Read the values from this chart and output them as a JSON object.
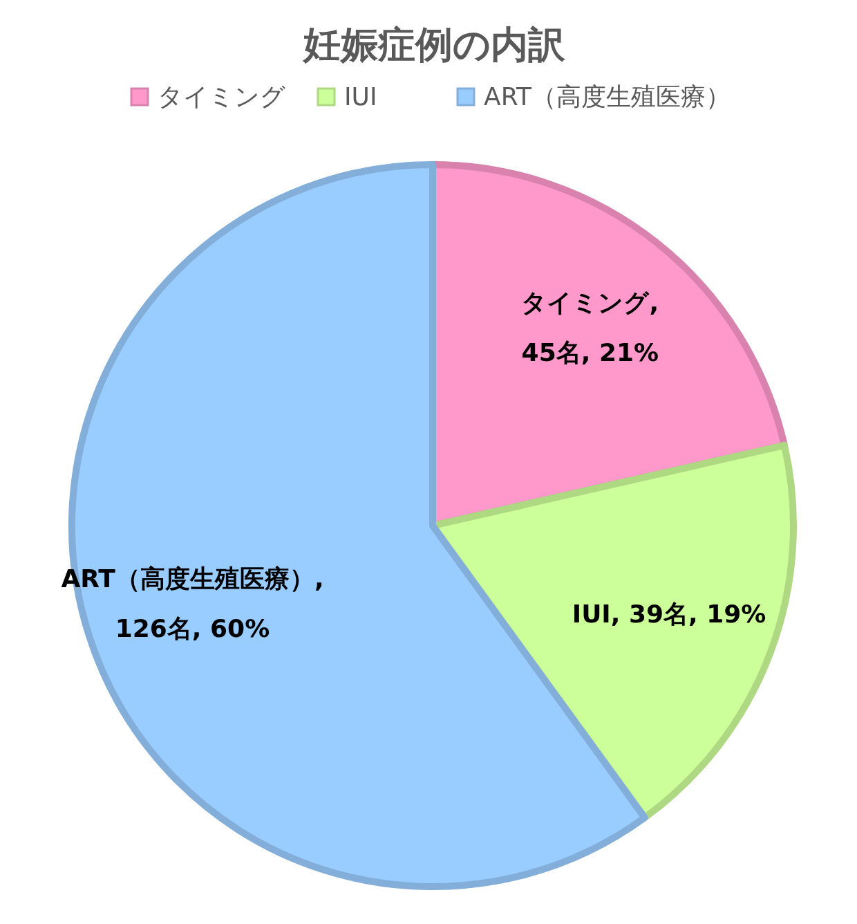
{
  "chart_data": {
    "type": "pie",
    "title": "妊娠症例の内訳",
    "categories": [
      "タイミング",
      "IUI",
      "ART（高度生殖医療）"
    ],
    "values": [
      45,
      39,
      126
    ],
    "value_labels": [
      "タイミング, 45名, 21%",
      "IUI, 39名, 19%",
      "ART（高度生殖医療）, 126名, 60%"
    ],
    "colors": [
      "#ff99cc",
      "#ccff99",
      "#99ccff"
    ],
    "legend": "top"
  }
}
